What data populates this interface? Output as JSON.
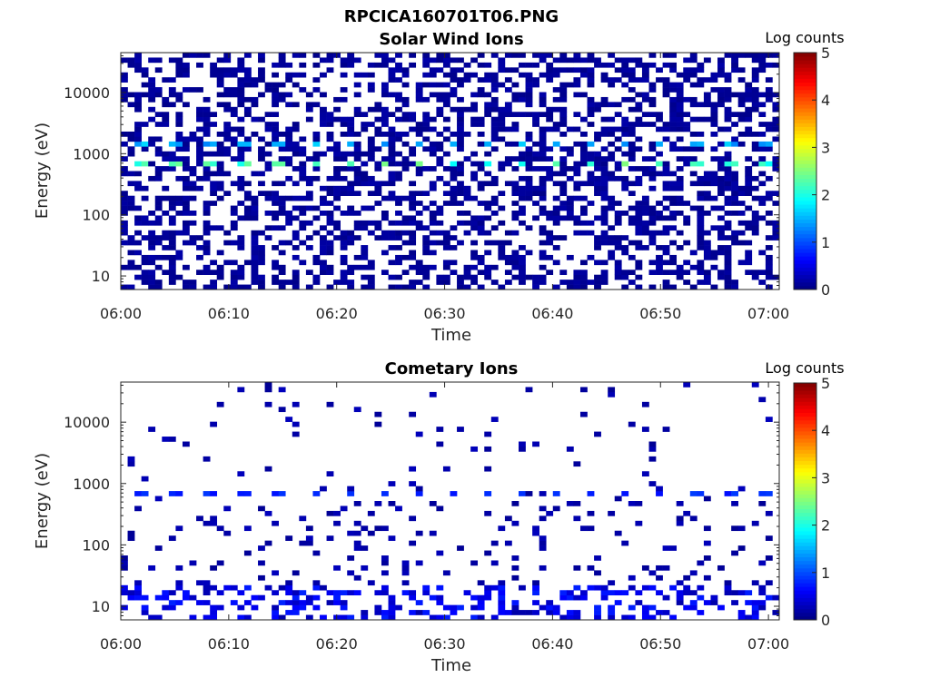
{
  "figure": {
    "filename": "RPCICA160701T06.PNG"
  },
  "colors": {
    "colormap": [
      "#00007f",
      "#0000ff",
      "#007fff",
      "#00ffff",
      "#7fff7f",
      "#ffff00",
      "#ff7f00",
      "#ff0000",
      "#7f0000"
    ],
    "background": "#ffffff",
    "axes": "#262626"
  },
  "chart_data": [
    {
      "type": "heatmap",
      "title": "Solar Wind Ions",
      "xlabel": "Time",
      "ylabel": "Energy (eV)",
      "xscale": "time",
      "yscale": "log",
      "xlim": [
        "06:00",
        "07:01"
      ],
      "ylim": [
        6,
        45000
      ],
      "xticks": [
        "06:00",
        "06:10",
        "06:20",
        "06:30",
        "06:40",
        "06:50",
        "07:00"
      ],
      "yticks": [
        "10",
        "100",
        "1000",
        "10000"
      ],
      "colorbar": {
        "label": "Log counts",
        "range": [
          0,
          5
        ],
        "ticks": [
          "0",
          "1",
          "2",
          "3",
          "4",
          "5"
        ]
      },
      "grid": false,
      "features": [
        {
          "energy_eV": 750,
          "value_log_counts": 2.2,
          "period_min": 3.2,
          "description": "periodic peaks"
        },
        {
          "energy_eV": 1500,
          "value_log_counts": 1.5,
          "period_min": 3.2
        },
        {
          "energy_range_eV": [
            20,
            45000
          ],
          "value_log_counts": 0.1,
          "description": "scattered single counts"
        }
      ]
    },
    {
      "type": "heatmap",
      "title": "Cometary Ions",
      "xlabel": "Time",
      "ylabel": "Energy (eV)",
      "xscale": "time",
      "yscale": "log",
      "xlim": [
        "06:00",
        "07:01"
      ],
      "ylim": [
        6,
        45000
      ],
      "xticks": [
        "06:00",
        "06:10",
        "06:20",
        "06:30",
        "06:40",
        "06:50",
        "07:00"
      ],
      "yticks": [
        "10",
        "100",
        "1000",
        "10000"
      ],
      "colorbar": {
        "label": "Log counts",
        "range": [
          0,
          5
        ],
        "ticks": [
          "0",
          "1",
          "2",
          "3",
          "4",
          "5"
        ]
      },
      "grid": false,
      "features": [
        {
          "energy_eV": 750,
          "value_log_counts": 0.8,
          "period_min": 3.2
        },
        {
          "energy_range_eV": [
            8,
            20
          ],
          "value_log_counts": 0.5,
          "description": "low-energy counts"
        },
        {
          "energy_range_eV": [
            30,
            20000
          ],
          "value_log_counts": 0.1,
          "description": "sparse counts"
        }
      ]
    }
  ]
}
